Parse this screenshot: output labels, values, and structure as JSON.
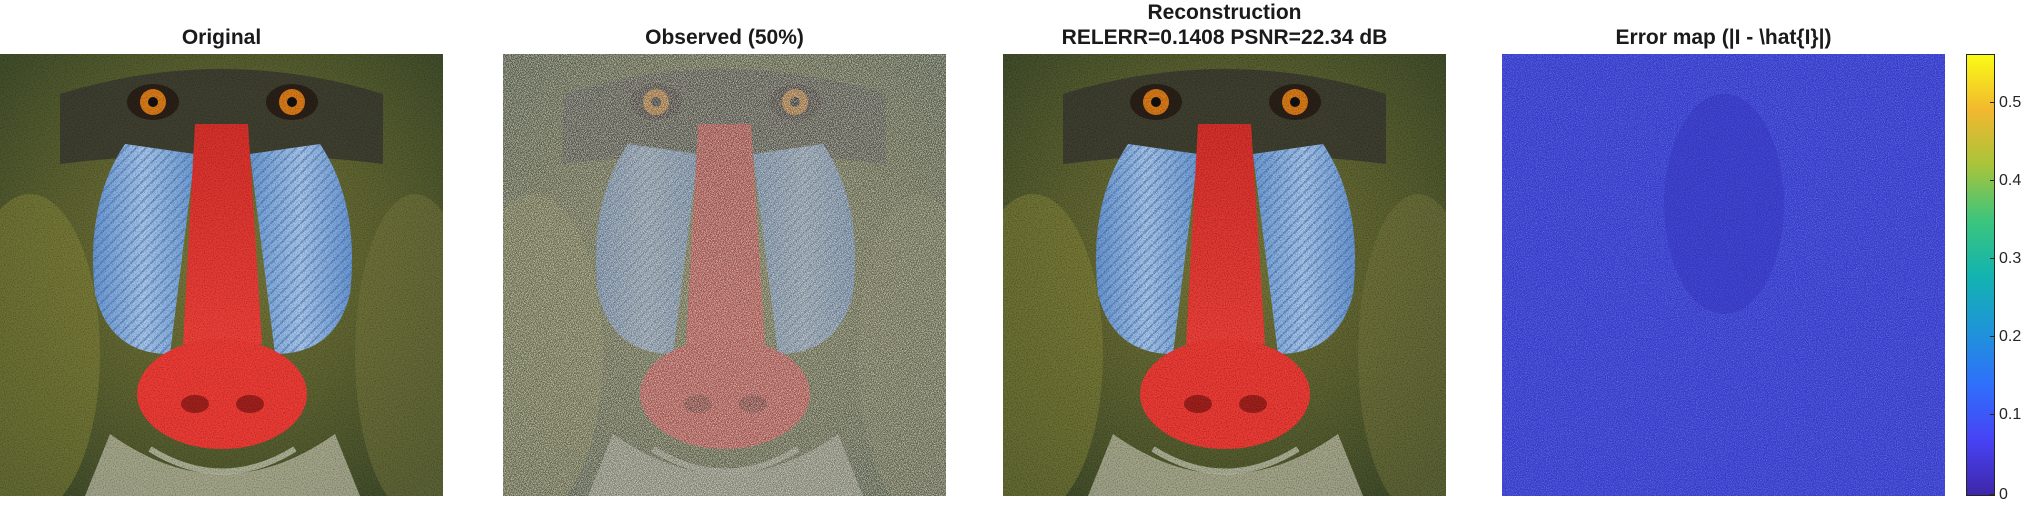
{
  "panels": [
    {
      "title": "Original"
    },
    {
      "title": "Observed (50%)"
    },
    {
      "title_line1": "Reconstruction",
      "title_line2": "RELERR=0.1408  PSNR=22.34 dB"
    },
    {
      "title": "Error map (|I - \\hat{I}|)"
    }
  ],
  "colorbar": {
    "colormap": "parula",
    "ticks": [
      "0.5",
      "0.4",
      "0.3",
      "0.2",
      "0.1",
      "0"
    ],
    "colors": [
      "#3e26a8",
      "#4743f5",
      "#2f6ffb",
      "#1e95d8",
      "#13b4b0",
      "#3cc57c",
      "#a8c43b",
      "#f2b82f",
      "#f9fb15"
    ]
  }
}
